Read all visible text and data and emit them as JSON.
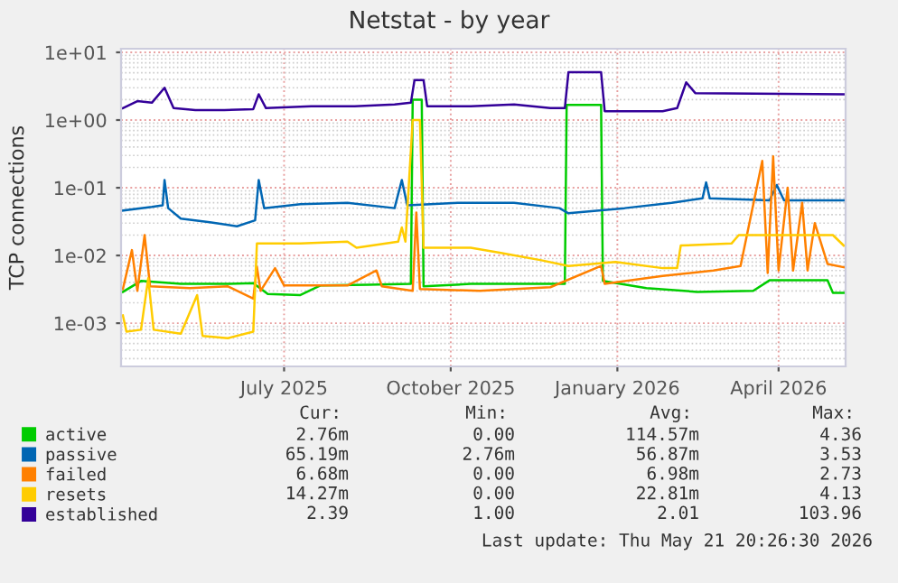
{
  "chart_data": {
    "type": "line",
    "title": "Netstat - by year",
    "ylabel": "TCP connections",
    "log": "y",
    "grid": true,
    "legend": "bottom",
    "line_style": "solid",
    "marker": "none",
    "xlim": [
      "2025-04-17",
      "2026-05-22"
    ],
    "xticks": [
      {
        "value": "2025-07-16",
        "label": "July 2025"
      },
      {
        "value": "2025-10-16",
        "label": "October 2025"
      },
      {
        "value": "2026-01-16",
        "label": "January 2026"
      },
      {
        "value": "2026-04-15",
        "label": "April 2026"
      }
    ],
    "ylim": [
      0.00023,
      11.3
    ],
    "yticks": [
      {
        "value": 0.001,
        "label": "1e-03"
      },
      {
        "value": 0.01,
        "label": "1e-02"
      },
      {
        "value": 0.1,
        "label": "1e-01"
      },
      {
        "value": 1,
        "label": "1e+00"
      },
      {
        "value": 10,
        "label": "1e+01"
      }
    ],
    "series": [
      {
        "name": "active",
        "color": "#00cc00",
        "x": [
          "2025-04-18",
          "2025-04-28",
          "2025-05-20",
          "2025-06-13",
          "2025-06-29",
          "2025-07-07",
          "2025-07-25",
          "2025-08-05",
          "2025-09-01",
          "2025-09-24",
          "2025-09-25",
          "2025-09-30",
          "2025-10-01",
          "2025-10-27",
          "2025-12-18",
          "2025-12-19",
          "2026-01-07",
          "2026-01-08",
          "2026-02-01",
          "2026-03-01",
          "2026-04-01",
          "2026-04-10",
          "2026-05-12",
          "2026-05-15",
          "2026-05-21"
        ],
        "values": [
          0.0029,
          0.0042,
          0.0038,
          0.0038,
          0.0039,
          0.0027,
          0.0026,
          0.0036,
          0.0037,
          0.0038,
          2.0,
          2.0,
          0.0035,
          0.0038,
          0.0038,
          1.67,
          1.67,
          0.0042,
          0.0033,
          0.0029,
          0.003,
          0.0043,
          0.0043,
          0.0028,
          0.0028
        ]
      },
      {
        "name": "passive",
        "color": "#0066b3",
        "x": [
          "2025-04-18",
          "2025-05-04",
          "2025-05-10",
          "2025-05-11",
          "2025-05-13",
          "2025-05-20",
          "2025-06-05",
          "2025-06-20",
          "2025-06-30",
          "2025-07-02",
          "2025-07-05",
          "2025-07-25",
          "2025-08-20",
          "2025-09-15",
          "2025-09-19",
          "2025-09-22",
          "2025-10-20",
          "2025-11-20",
          "2025-12-15",
          "2025-12-20",
          "2026-01-20",
          "2026-02-15",
          "2026-03-04",
          "2026-03-06",
          "2026-03-08",
          "2026-04-10",
          "2026-04-14",
          "2026-04-18",
          "2026-05-21"
        ],
        "values": [
          0.046,
          0.052,
          0.055,
          0.13,
          0.05,
          0.035,
          0.031,
          0.027,
          0.033,
          0.13,
          0.05,
          0.057,
          0.06,
          0.05,
          0.13,
          0.055,
          0.06,
          0.06,
          0.05,
          0.042,
          0.05,
          0.06,
          0.07,
          0.12,
          0.07,
          0.065,
          0.11,
          0.065,
          0.065
        ]
      },
      {
        "name": "failed",
        "color": "#ff8000",
        "x": [
          "2025-04-18",
          "2025-04-23",
          "2025-04-26",
          "2025-04-30",
          "2025-05-03",
          "2025-05-25",
          "2025-06-15",
          "2025-06-29",
          "2025-07-01",
          "2025-07-03",
          "2025-07-11",
          "2025-07-16",
          "2025-08-20",
          "2025-09-05",
          "2025-09-08",
          "2025-09-25",
          "2025-09-27",
          "2025-09-29",
          "2025-11-01",
          "2025-12-10",
          "2026-01-07",
          "2026-01-09",
          "2026-02-10",
          "2026-03-10",
          "2026-03-25",
          "2026-04-06",
          "2026-04-09",
          "2026-04-12",
          "2026-04-15",
          "2026-04-20",
          "2026-04-23",
          "2026-04-28",
          "2026-05-01",
          "2026-05-05",
          "2026-05-12",
          "2026-05-21"
        ],
        "values": [
          0.0032,
          0.012,
          0.003,
          0.02,
          0.0035,
          0.0033,
          0.0035,
          0.0023,
          0.0068,
          0.003,
          0.0065,
          0.0036,
          0.0036,
          0.006,
          0.0035,
          0.003,
          0.043,
          0.0032,
          0.003,
          0.0034,
          0.007,
          0.0038,
          0.005,
          0.006,
          0.007,
          0.25,
          0.0055,
          0.29,
          0.006,
          0.1,
          0.006,
          0.06,
          0.006,
          0.03,
          0.0075,
          0.0067
        ]
      },
      {
        "name": "resets",
        "color": "#ffcc00",
        "x": [
          "2025-04-18",
          "2025-04-20",
          "2025-04-28",
          "2025-05-02",
          "2025-05-05",
          "2025-05-20",
          "2025-05-29",
          "2025-06-01",
          "2025-06-15",
          "2025-06-29",
          "2025-07-01",
          "2025-07-25",
          "2025-08-20",
          "2025-08-25",
          "2025-09-17",
          "2025-09-19",
          "2025-09-21",
          "2025-09-25",
          "2025-09-29",
          "2025-10-01",
          "2025-10-27",
          "2025-11-12",
          "2025-12-05",
          "2025-12-20",
          "2026-01-15",
          "2026-02-10",
          "2026-02-18",
          "2026-02-20",
          "2026-03-20",
          "2026-03-24",
          "2026-05-15",
          "2026-05-21"
        ],
        "values": [
          0.0013,
          0.00075,
          0.0008,
          0.0046,
          0.0008,
          0.0007,
          0.0026,
          0.00065,
          0.0006,
          0.00075,
          0.015,
          0.015,
          0.016,
          0.013,
          0.016,
          0.026,
          0.016,
          1.0,
          1.0,
          0.013,
          0.013,
          0.011,
          0.0085,
          0.007,
          0.008,
          0.0065,
          0.0065,
          0.014,
          0.015,
          0.02,
          0.02,
          0.014
        ]
      },
      {
        "name": "established",
        "color": "#330099",
        "x": [
          "2025-04-18",
          "2025-04-26",
          "2025-05-04",
          "2025-05-11",
          "2025-05-16",
          "2025-05-28",
          "2025-06-13",
          "2025-06-29",
          "2025-07-02",
          "2025-07-06",
          "2025-07-31",
          "2025-08-24",
          "2025-09-15",
          "2025-09-24",
          "2025-09-26",
          "2025-10-01",
          "2025-10-03",
          "2025-10-27",
          "2025-11-20",
          "2025-12-10",
          "2025-12-18",
          "2025-12-20",
          "2026-01-07",
          "2026-01-09",
          "2026-02-10",
          "2026-02-18",
          "2026-02-23",
          "2026-02-28",
          "2026-05-21"
        ],
        "values": [
          1.5,
          1.9,
          1.8,
          3.0,
          1.5,
          1.4,
          1.4,
          1.45,
          2.4,
          1.5,
          1.6,
          1.6,
          1.7,
          1.8,
          3.9,
          3.9,
          1.6,
          1.6,
          1.7,
          1.5,
          1.5,
          5.1,
          5.1,
          1.35,
          1.35,
          1.5,
          3.6,
          2.5,
          2.4
        ]
      }
    ],
    "annotations": [
      "Cur:",
      "Min:",
      "Avg:",
      "Max:",
      "2.76m",
      "0.00",
      "114.57m",
      "4.36",
      "65.19m",
      "2.76m",
      "56.87m",
      "3.53",
      "6.68m",
      "0.00",
      "6.98m",
      "2.73",
      "14.27m",
      "0.00",
      "22.81m",
      "4.13",
      "2.39",
      "1.00",
      "2.01",
      "103.96",
      "Last update: Thu May 21 20:26:30 2026"
    ]
  }
}
